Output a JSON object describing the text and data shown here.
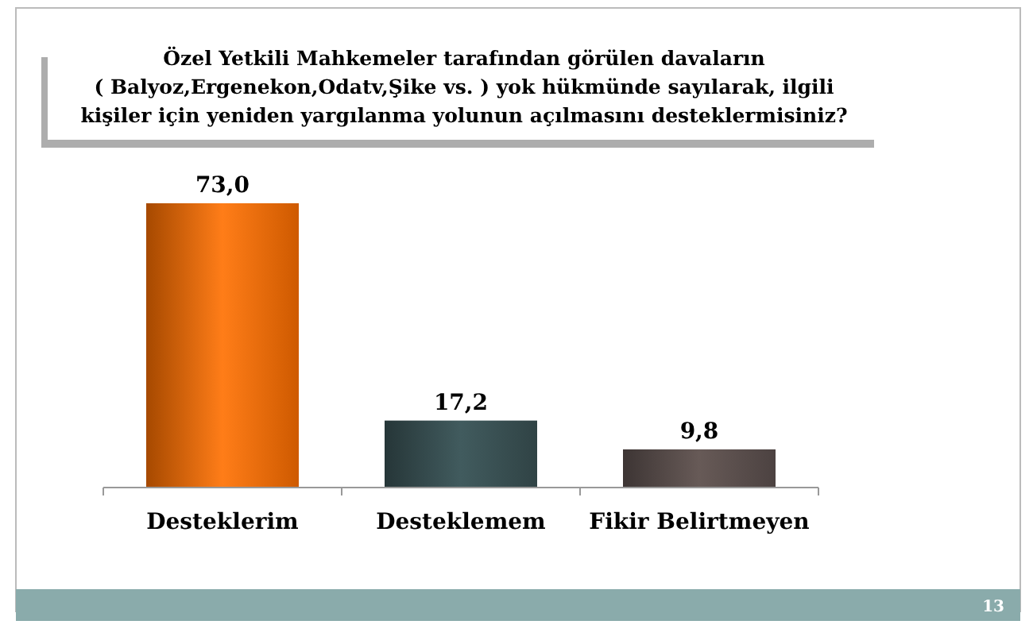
{
  "chart_data": {
    "type": "bar",
    "title": "Özel Yetkili Mahkemeler tarafından görülen davaların\n( Balyoz,Ergenekon,Odatv,Şike vs. ) yok hükmünde sayılarak, ilgili\nkişiler için yeniden yargılanma yolunun açılmasını desteklermisiniz?",
    "categories": [
      "Desteklerim",
      "Desteklemem",
      "Fikir Belirtmeyen"
    ],
    "values": [
      73.0,
      17.2,
      9.8
    ],
    "value_labels": [
      "73,0",
      "17,2",
      "9,8"
    ],
    "colors": [
      "#ff7000",
      "#3b5356",
      "#5e5250"
    ],
    "annotations": [
      "13"
    ]
  }
}
